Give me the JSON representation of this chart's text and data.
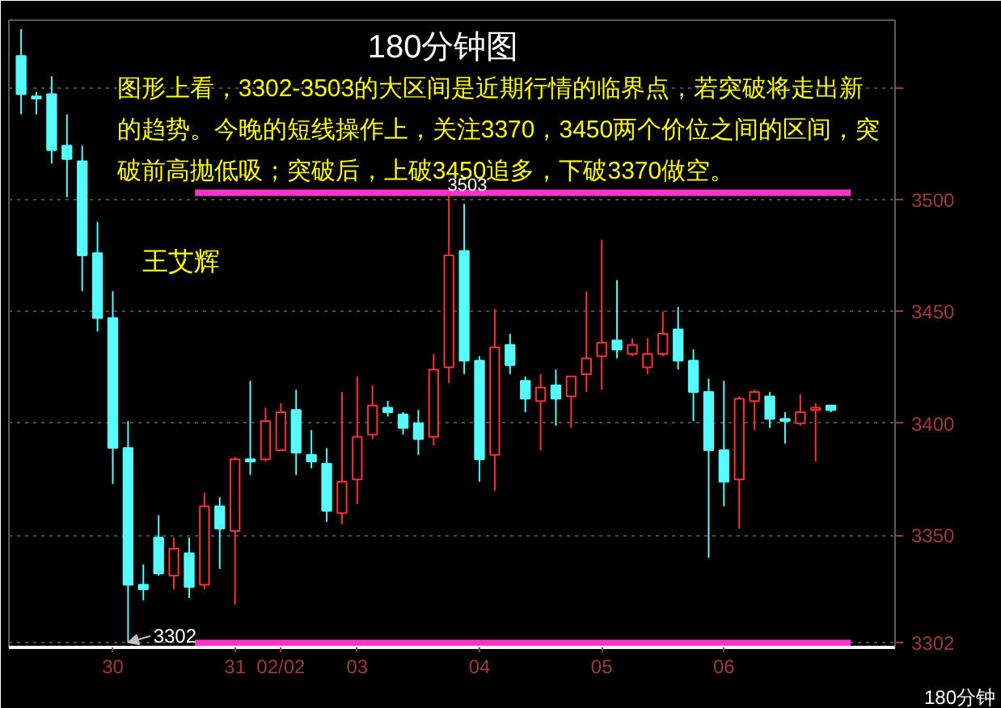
{
  "chart_data": {
    "type": "candlestick",
    "title": "180分钟图",
    "annotations": [
      "图形上看，3302-3503的大区间是近期行情的临界点，若突破将走出新的趋势。今晚的短线操作上，关注3370，3450两个价位之间的区间，突破前高抛低吸；突破后，上破3450追多，下破3370做空。",
      "王艾辉",
      {
        "text": "3503",
        "y": 3503
      },
      "3302",
      "180分钟"
    ],
    "categories": [
      null,
      null,
      null,
      null,
      null,
      null,
      "30",
      null,
      null,
      null,
      null,
      null,
      null,
      null,
      "31",
      null,
      null,
      "02/02",
      null,
      null,
      null,
      null,
      "03",
      null,
      null,
      null,
      null,
      null,
      null,
      null,
      "04",
      null,
      null,
      null,
      null,
      null,
      null,
      null,
      "05",
      null,
      null,
      null,
      null,
      null,
      null,
      null,
      "06",
      null,
      null,
      null,
      null,
      null,
      null,
      null
    ],
    "ohlc": [
      [
        3564,
        3576,
        3538,
        3547
      ],
      [
        3546,
        3548,
        3538,
        3545
      ],
      [
        3547,
        3555,
        3516,
        3522
      ],
      [
        3524,
        3538,
        3501,
        3518
      ],
      [
        3517,
        3524,
        3459,
        3475
      ],
      [
        3476,
        3490,
        3441,
        3447
      ],
      [
        3447,
        3459,
        3373,
        3389
      ],
      [
        3389,
        3401,
        3302,
        3328
      ],
      [
        3328,
        3337,
        3321,
        3326
      ],
      [
        3349,
        3359,
        3332,
        3333
      ],
      [
        3332,
        3349,
        3326,
        3344
      ],
      [
        3342,
        3349,
        3322,
        3327
      ],
      [
        3328,
        3369,
        3326,
        3363
      ],
      [
        3363,
        3367,
        3335,
        3353
      ],
      [
        3352,
        3385,
        3319,
        3384
      ],
      [
        3384,
        3419,
        3377,
        3383
      ],
      [
        3384,
        3407,
        3383,
        3401
      ],
      [
        3388,
        3409,
        3388,
        3405
      ],
      [
        3406,
        3415,
        3377,
        3387
      ],
      [
        3386,
        3397,
        3380,
        3383
      ],
      [
        3382,
        3389,
        3356,
        3361
      ],
      [
        3360,
        3414,
        3355,
        3374
      ],
      [
        3375,
        3421,
        3364,
        3394
      ],
      [
        3395,
        3417,
        3393,
        3408
      ],
      [
        3407,
        3410,
        3403,
        3405
      ],
      [
        3404,
        3405,
        3395,
        3398
      ],
      [
        3400,
        3406,
        3386,
        3393
      ],
      [
        3394,
        3431,
        3390,
        3424
      ],
      [
        3425,
        3503,
        3418,
        3475
      ],
      [
        3477,
        3498,
        3422,
        3428
      ],
      [
        3428,
        3430,
        3374,
        3384
      ],
      [
        3386,
        3451,
        3370,
        3434
      ],
      [
        3435,
        3440,
        3422,
        3426
      ],
      [
        3419,
        3421,
        3405,
        3411
      ],
      [
        3410,
        3422,
        3388,
        3416
      ],
      [
        3417,
        3424,
        3399,
        3411
      ],
      [
        3412,
        3421,
        3398,
        3421
      ],
      [
        3422,
        3459,
        3414,
        3429
      ],
      [
        3430,
        3482,
        3415,
        3436
      ],
      [
        3437,
        3464,
        3429,
        3433
      ],
      [
        3431,
        3438,
        3430,
        3435
      ],
      [
        3425,
        3438,
        3422,
        3431
      ],
      [
        3431,
        3450,
        3430,
        3440
      ],
      [
        3442,
        3452,
        3424,
        3428
      ],
      [
        3428,
        3433,
        3401,
        3414
      ],
      [
        3414,
        3420,
        3340,
        3388
      ],
      [
        3388,
        3419,
        3363,
        3374
      ],
      [
        3375,
        3412,
        3353,
        3411
      ],
      [
        3410,
        3415,
        3397,
        3414
      ],
      [
        3412,
        3414,
        3398,
        3402
      ],
      [
        3402,
        3405,
        3391,
        3401
      ],
      [
        3400,
        3413,
        3399,
        3405
      ],
      [
        3406,
        3409,
        3383,
        3407
      ],
      [
        3408,
        3408,
        3405,
        3406
      ]
    ],
    "colors": [
      "#54fcfc",
      "#54fcfc",
      "#54fcfc",
      "#54fcfc",
      "#54fcfc",
      "#54fcfc",
      "#54fcfc",
      "#54fcfc",
      "#54fcfc",
      "#54fcfc",
      "#ff3232",
      "#54fcfc",
      "#ff3232",
      "#54fcfc",
      "#ff3232",
      "#54fcfc",
      "#ff3232",
      "#ff3232",
      "#54fcfc",
      "#54fcfc",
      "#54fcfc",
      "#ff3232",
      "#ff3232",
      "#ff3232",
      "#54fcfc",
      "#54fcfc",
      "#54fcfc",
      "#ff3232",
      "#ff3232",
      "#54fcfc",
      "#54fcfc",
      "#ff3232",
      "#54fcfc",
      "#54fcfc",
      "#ff3232",
      "#54fcfc",
      "#ff3232",
      "#ff3232",
      "#ff3232",
      "#54fcfc",
      "#ff3232",
      "#ff3232",
      "#ff3232",
      "#54fcfc",
      "#54fcfc",
      "#54fcfc",
      "#54fcfc",
      "#ff3232",
      "#ff3232",
      "#54fcfc",
      "#54fcfc",
      "#ff3232",
      "#ff3232",
      "#54fcfc"
    ],
    "ylim": [
      3300,
      3580
    ],
    "yticks": [
      {
        "value": 3302,
        "label": "3302"
      },
      3350,
      3400,
      3450,
      3500,
      {
        "value": 3550,
        "label": null
      }
    ],
    "grid": "y",
    "ref_lines": [
      {
        "axis": "y",
        "value": 3503,
        "color": "#ff33cc"
      },
      {
        "axis": "y",
        "value": 3302,
        "color": "#ff33cc"
      }
    ]
  }
}
